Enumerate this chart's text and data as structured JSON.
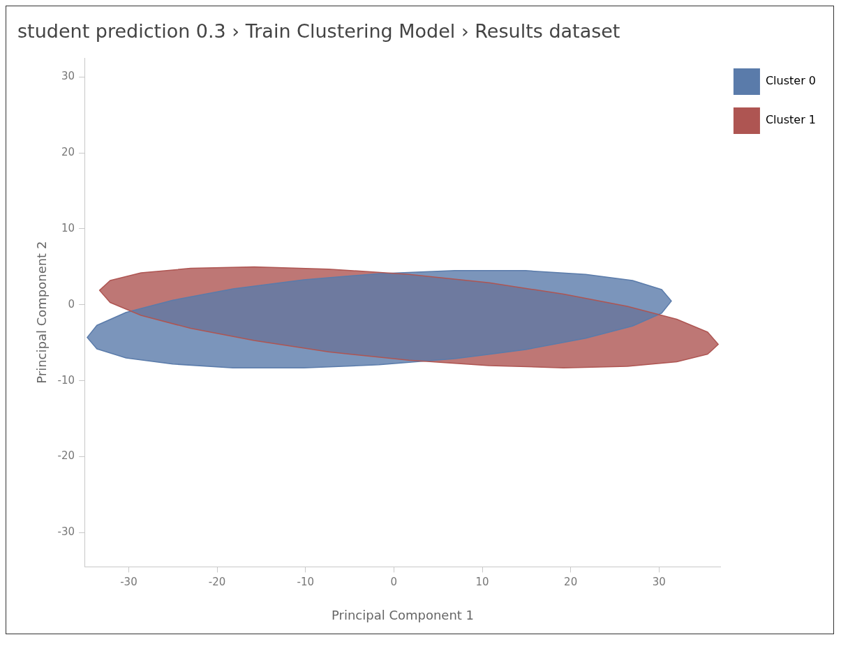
{
  "chart_data": {
    "type": "area",
    "title": "student prediction 0.3 › Train Clustering Model › Results dataset",
    "xlabel": "Principal Component 1",
    "ylabel": "Principal Component 2",
    "xlim": [
      -35,
      37
    ],
    "xticks": [
      -30,
      -20,
      -10,
      0,
      10,
      20,
      30
    ],
    "ylim": [
      -34.5,
      32.5
    ],
    "yticks": [
      -30,
      -20,
      -10,
      0,
      10,
      20,
      30
    ],
    "legend": "top right",
    "series": [
      {
        "name": "Cluster 0",
        "color": "#5a7baa",
        "x": [
          31.4,
          30.3,
          27.0,
          21.7,
          14.9,
          6.9,
          -1.7,
          -10.2,
          -18.2,
          -25.0,
          -30.3,
          -33.6,
          -34.7,
          -33.6,
          -30.3,
          -25.0,
          -18.2,
          -10.2,
          -1.7,
          6.9,
          14.9,
          21.7,
          27.0,
          30.3
        ],
        "values": [
          0.5,
          2.0,
          3.2,
          4.0,
          4.5,
          4.5,
          4.1,
          3.3,
          2.1,
          0.6,
          -1.0,
          -2.7,
          -4.3,
          -5.8,
          -7.0,
          -7.8,
          -8.3,
          -8.3,
          -7.9,
          -7.1,
          -5.9,
          -4.4,
          -2.8,
          -1.1
        ]
      },
      {
        "name": "Cluster 1",
        "color": "#ae5552",
        "x": [
          36.7,
          35.5,
          32.0,
          26.4,
          19.2,
          10.8,
          1.7,
          -7.4,
          -15.8,
          -23.0,
          -28.6,
          -32.1,
          -33.3,
          -32.1,
          -28.6,
          -23.0,
          -15.8,
          -7.4,
          1.7,
          10.8,
          19.2,
          26.4,
          32.0,
          35.5
        ],
        "values": [
          -5.2,
          -3.6,
          -1.9,
          -0.2,
          1.4,
          2.9,
          4.0,
          4.7,
          5.0,
          4.8,
          4.2,
          3.2,
          1.9,
          0.3,
          -1.4,
          -3.1,
          -4.7,
          -6.2,
          -7.3,
          -8.0,
          -8.3,
          -8.1,
          -7.5,
          -6.5
        ]
      }
    ]
  }
}
